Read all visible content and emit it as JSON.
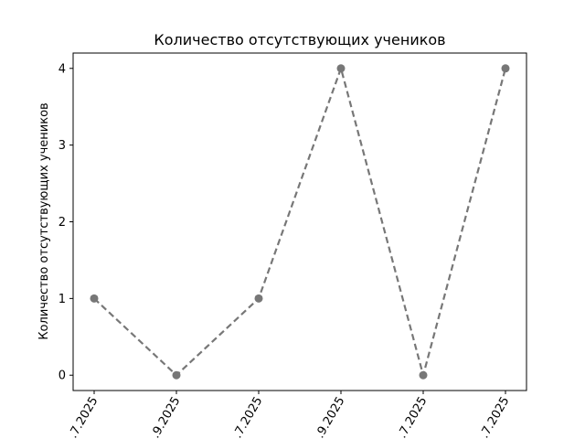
{
  "chart_data": {
    "type": "line",
    "title": "Количество отсутствующих учеников",
    "xlabel": "",
    "ylabel": "Количество отсутствующих учеников",
    "categories": [
      ".7.2025",
      ".9.2025",
      ".7.2025",
      ".9.2025",
      ".7.2025",
      ".7.2025"
    ],
    "series": [
      {
        "values": [
          1,
          0,
          1,
          4,
          0,
          4
        ],
        "color": "#777777",
        "line_style": "dashed",
        "marker": "circle"
      }
    ],
    "yticks": [
      0,
      1,
      2,
      3,
      4
    ],
    "ylim": [
      -0.2,
      4.2
    ],
    "grid": false,
    "legend": "none",
    "xtick_rotation": -60
  }
}
